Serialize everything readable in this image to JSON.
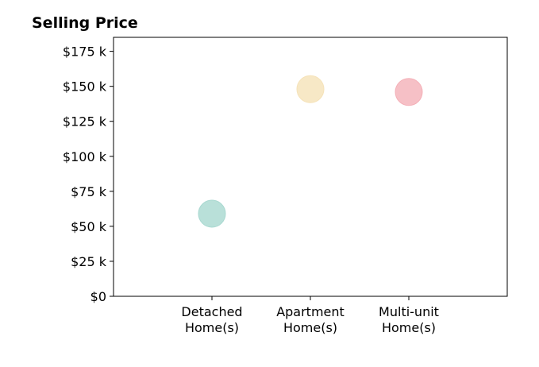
{
  "chart_data": {
    "type": "scatter",
    "title": "Selling Price",
    "xlabel": "",
    "ylabel": "",
    "categories": [
      [
        "Detached",
        "Home(s)"
      ],
      [
        "Apartment",
        "Home(s)"
      ],
      [
        "Multi-unit",
        "Home(s)"
      ]
    ],
    "values": [
      59000,
      148000,
      146000
    ],
    "colors": [
      "#a8d8d0",
      "#f5e2b8",
      "#f4b0b8"
    ],
    "ylim": [
      0,
      185000
    ],
    "yticks": [
      0,
      25000,
      50000,
      75000,
      100000,
      125000,
      150000,
      175000
    ],
    "ytick_labels": [
      "$0",
      "$25 k",
      "$50 k",
      "$75 k",
      "$100 k",
      "$125 k",
      "$150 k",
      "$175 k"
    ],
    "grid": false,
    "legend": "none"
  }
}
